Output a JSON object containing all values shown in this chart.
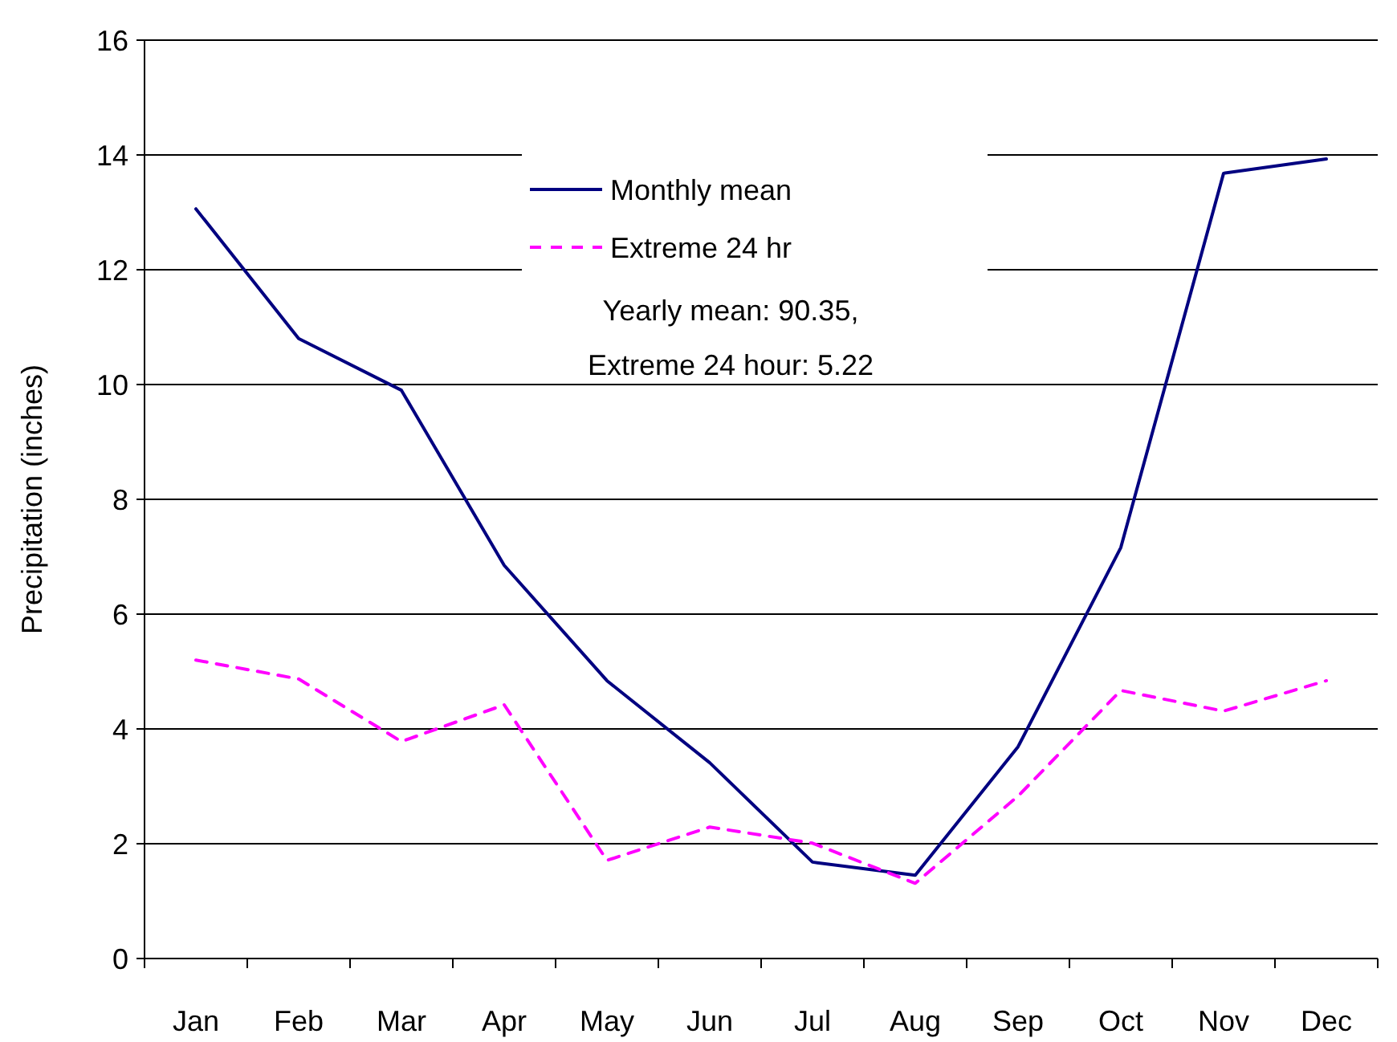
{
  "chart_data": {
    "type": "line",
    "ylabel": "Precipitation (inches)",
    "categories": [
      "Jan",
      "Feb",
      "Mar",
      "Apr",
      "May",
      "Jun",
      "Jul",
      "Aug",
      "Sep",
      "Oct",
      "Nov",
      "Dec"
    ],
    "series": [
      {
        "name": "Monthly mean",
        "color": "#000080",
        "line_style": "solid",
        "values": [
          13.06,
          10.8,
          9.9,
          6.85,
          4.84,
          3.41,
          1.68,
          1.45,
          3.69,
          7.16,
          13.68,
          13.93
        ]
      },
      {
        "name": "Extreme 24 hr",
        "color": "#ff00ff",
        "line_style": "dashed",
        "values": [
          5.2,
          4.87,
          3.78,
          4.42,
          1.71,
          2.29,
          2.01,
          1.31,
          2.83,
          4.67,
          4.31,
          4.84
        ]
      }
    ],
    "ylim": [
      0,
      16
    ],
    "yticks": [
      0,
      2,
      4,
      6,
      8,
      10,
      12,
      14,
      16
    ],
    "grid": "y",
    "legend": "top",
    "marker": "none",
    "annotations": [
      "Yearly mean: 90.35,",
      "Extreme 24 hour: 5.22"
    ]
  }
}
